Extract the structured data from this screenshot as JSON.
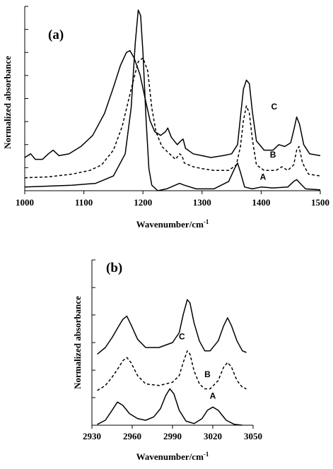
{
  "chart_data": [
    {
      "type": "line",
      "panel_label": "(a)",
      "xlabel": "Wavenumber/cm",
      "xlabel_sup": "-1",
      "ylabel": "Normalized absorbance",
      "xlim": [
        1000,
        1500
      ],
      "ylim": [
        0,
        1
      ],
      "x_ticks": [
        1000,
        1100,
        1200,
        1300,
        1400,
        1500
      ],
      "y_ticks": [
        0,
        0.125,
        0.25,
        0.375,
        0.5,
        0.625,
        0.75,
        0.875,
        1.0
      ],
      "grid": false,
      "series": [
        {
          "name": "A",
          "dash": false,
          "points": [
            [
              1000,
              0.02
            ],
            [
              1040,
              0.025
            ],
            [
              1080,
              0.03
            ],
            [
              1120,
              0.04
            ],
            [
              1150,
              0.08
            ],
            [
              1170,
              0.2
            ],
            [
              1180,
              0.45
            ],
            [
              1187,
              0.8
            ],
            [
              1192,
              0.98
            ],
            [
              1196,
              0.95
            ],
            [
              1200,
              0.75
            ],
            [
              1205,
              0.4
            ],
            [
              1210,
              0.12
            ],
            [
              1215,
              0.03
            ],
            [
              1225,
              0.0
            ],
            [
              1240,
              0.01
            ],
            [
              1262,
              0.04
            ],
            [
              1270,
              0.03
            ],
            [
              1290,
              0.01
            ],
            [
              1320,
              0.01
            ],
            [
              1345,
              0.05
            ],
            [
              1355,
              0.12
            ],
            [
              1360,
              0.15
            ],
            [
              1365,
              0.1
            ],
            [
              1372,
              0.02
            ],
            [
              1385,
              0.01
            ],
            [
              1400,
              0.02
            ],
            [
              1420,
              0.015
            ],
            [
              1445,
              0.02
            ],
            [
              1455,
              0.05
            ],
            [
              1460,
              0.06
            ],
            [
              1466,
              0.04
            ],
            [
              1475,
              0.01
            ],
            [
              1500,
              0.005
            ]
          ]
        },
        {
          "name": "B",
          "dash": true,
          "points": [
            [
              1000,
              0.07
            ],
            [
              1040,
              0.075
            ],
            [
              1080,
              0.09
            ],
            [
              1110,
              0.11
            ],
            [
              1130,
              0.14
            ],
            [
              1150,
              0.22
            ],
            [
              1165,
              0.35
            ],
            [
              1180,
              0.55
            ],
            [
              1192,
              0.7
            ],
            [
              1200,
              0.72
            ],
            [
              1208,
              0.65
            ],
            [
              1215,
              0.45
            ],
            [
              1222,
              0.32
            ],
            [
              1232,
              0.24
            ],
            [
              1245,
              0.2
            ],
            [
              1255,
              0.17
            ],
            [
              1262,
              0.2
            ],
            [
              1266,
              0.19
            ],
            [
              1270,
              0.15
            ],
            [
              1285,
              0.13
            ],
            [
              1300,
              0.12
            ],
            [
              1320,
              0.11
            ],
            [
              1345,
              0.11
            ],
            [
              1358,
              0.14
            ],
            [
              1365,
              0.24
            ],
            [
              1370,
              0.38
            ],
            [
              1375,
              0.46
            ],
            [
              1380,
              0.42
            ],
            [
              1385,
              0.28
            ],
            [
              1392,
              0.14
            ],
            [
              1405,
              0.11
            ],
            [
              1425,
              0.11
            ],
            [
              1435,
              0.13
            ],
            [
              1445,
              0.11
            ],
            [
              1455,
              0.14
            ],
            [
              1460,
              0.22
            ],
            [
              1464,
              0.24
            ],
            [
              1470,
              0.15
            ],
            [
              1480,
              0.09
            ],
            [
              1500,
              0.08
            ]
          ]
        },
        {
          "name": "C",
          "dash": false,
          "points": [
            [
              1000,
              0.18
            ],
            [
              1010,
              0.2
            ],
            [
              1018,
              0.17
            ],
            [
              1030,
              0.17
            ],
            [
              1040,
              0.2
            ],
            [
              1048,
              0.22
            ],
            [
              1058,
              0.19
            ],
            [
              1075,
              0.2
            ],
            [
              1095,
              0.24
            ],
            [
              1115,
              0.3
            ],
            [
              1135,
              0.42
            ],
            [
              1150,
              0.56
            ],
            [
              1162,
              0.68
            ],
            [
              1172,
              0.75
            ],
            [
              1178,
              0.76
            ],
            [
              1185,
              0.72
            ],
            [
              1195,
              0.63
            ],
            [
              1205,
              0.48
            ],
            [
              1212,
              0.38
            ],
            [
              1220,
              0.32
            ],
            [
              1230,
              0.3
            ],
            [
              1238,
              0.32
            ],
            [
              1242,
              0.34
            ],
            [
              1248,
              0.29
            ],
            [
              1258,
              0.25
            ],
            [
              1264,
              0.27
            ],
            [
              1268,
              0.28
            ],
            [
              1272,
              0.23
            ],
            [
              1285,
              0.2
            ],
            [
              1300,
              0.19
            ],
            [
              1315,
              0.18
            ],
            [
              1335,
              0.19
            ],
            [
              1350,
              0.2
            ],
            [
              1360,
              0.25
            ],
            [
              1365,
              0.4
            ],
            [
              1370,
              0.55
            ],
            [
              1375,
              0.6
            ],
            [
              1380,
              0.58
            ],
            [
              1385,
              0.43
            ],
            [
              1392,
              0.27
            ],
            [
              1405,
              0.22
            ],
            [
              1420,
              0.22
            ],
            [
              1430,
              0.25
            ],
            [
              1440,
              0.24
            ],
            [
              1450,
              0.26
            ],
            [
              1456,
              0.34
            ],
            [
              1460,
              0.4
            ],
            [
              1465,
              0.36
            ],
            [
              1472,
              0.25
            ],
            [
              1482,
              0.2
            ],
            [
              1500,
              0.19
            ]
          ]
        }
      ]
    },
    {
      "type": "line",
      "panel_label": "(b)",
      "xlabel": "Wavenumber/cm",
      "xlabel_sup": "-1",
      "ylabel": "Normalized absorbance",
      "xlim": [
        2930,
        3050
      ],
      "ylim": [
        0,
        1
      ],
      "x_ticks": [
        2930,
        2960,
        2990,
        3020,
        3050
      ],
      "y_ticks": [
        0,
        0.167,
        0.333,
        0.5,
        0.667,
        0.833,
        1.0
      ],
      "grid": false,
      "series": [
        {
          "name": "A",
          "dash": false,
          "points": [
            [
              2934,
              0.005
            ],
            [
              2940,
              0.03
            ],
            [
              2945,
              0.09
            ],
            [
              2949,
              0.14
            ],
            [
              2953,
              0.12
            ],
            [
              2958,
              0.07
            ],
            [
              2964,
              0.04
            ],
            [
              2970,
              0.03
            ],
            [
              2976,
              0.05
            ],
            [
              2981,
              0.1
            ],
            [
              2985,
              0.18
            ],
            [
              2988,
              0.22
            ],
            [
              2991,
              0.19
            ],
            [
              2995,
              0.09
            ],
            [
              3000,
              0.025
            ],
            [
              3006,
              0.01
            ],
            [
              3012,
              0.04
            ],
            [
              3016,
              0.09
            ],
            [
              3020,
              0.11
            ],
            [
              3024,
              0.09
            ],
            [
              3030,
              0.03
            ],
            [
              3036,
              0.005
            ],
            [
              3042,
              0.0
            ]
          ]
        },
        {
          "name": "B",
          "dash": true,
          "points": [
            [
              2934,
              0.21
            ],
            [
              2940,
              0.24
            ],
            [
              2945,
              0.29
            ],
            [
              2950,
              0.35
            ],
            [
              2953,
              0.39
            ],
            [
              2956,
              0.41
            ],
            [
              2959,
              0.38
            ],
            [
              2964,
              0.3
            ],
            [
              2970,
              0.25
            ],
            [
              2980,
              0.24
            ],
            [
              2990,
              0.26
            ],
            [
              2995,
              0.3
            ],
            [
              2998,
              0.38
            ],
            [
              3001,
              0.45
            ],
            [
              3003,
              0.43
            ],
            [
              3006,
              0.33
            ],
            [
              3010,
              0.25
            ],
            [
              3014,
              0.22
            ],
            [
              3018,
              0.22
            ],
            [
              3024,
              0.27
            ],
            [
              3028,
              0.35
            ],
            [
              3031,
              0.38
            ],
            [
              3034,
              0.35
            ],
            [
              3038,
              0.27
            ],
            [
              3042,
              0.23
            ],
            [
              3045,
              0.22
            ]
          ]
        },
        {
          "name": "C",
          "dash": false,
          "points": [
            [
              2934,
              0.43
            ],
            [
              2940,
              0.47
            ],
            [
              2945,
              0.53
            ],
            [
              2950,
              0.6
            ],
            [
              2953,
              0.64
            ],
            [
              2956,
              0.66
            ],
            [
              2959,
              0.61
            ],
            [
              2964,
              0.52
            ],
            [
              2970,
              0.47
            ],
            [
              2980,
              0.47
            ],
            [
              2990,
              0.5
            ],
            [
              2995,
              0.56
            ],
            [
              2998,
              0.67
            ],
            [
              3001,
              0.76
            ],
            [
              3003,
              0.74
            ],
            [
              3006,
              0.62
            ],
            [
              3010,
              0.51
            ],
            [
              3014,
              0.45
            ],
            [
              3018,
              0.45
            ],
            [
              3024,
              0.51
            ],
            [
              3028,
              0.6
            ],
            [
              3031,
              0.65
            ],
            [
              3034,
              0.6
            ],
            [
              3038,
              0.51
            ],
            [
              3042,
              0.45
            ],
            [
              3045,
              0.44
            ]
          ]
        }
      ]
    }
  ]
}
